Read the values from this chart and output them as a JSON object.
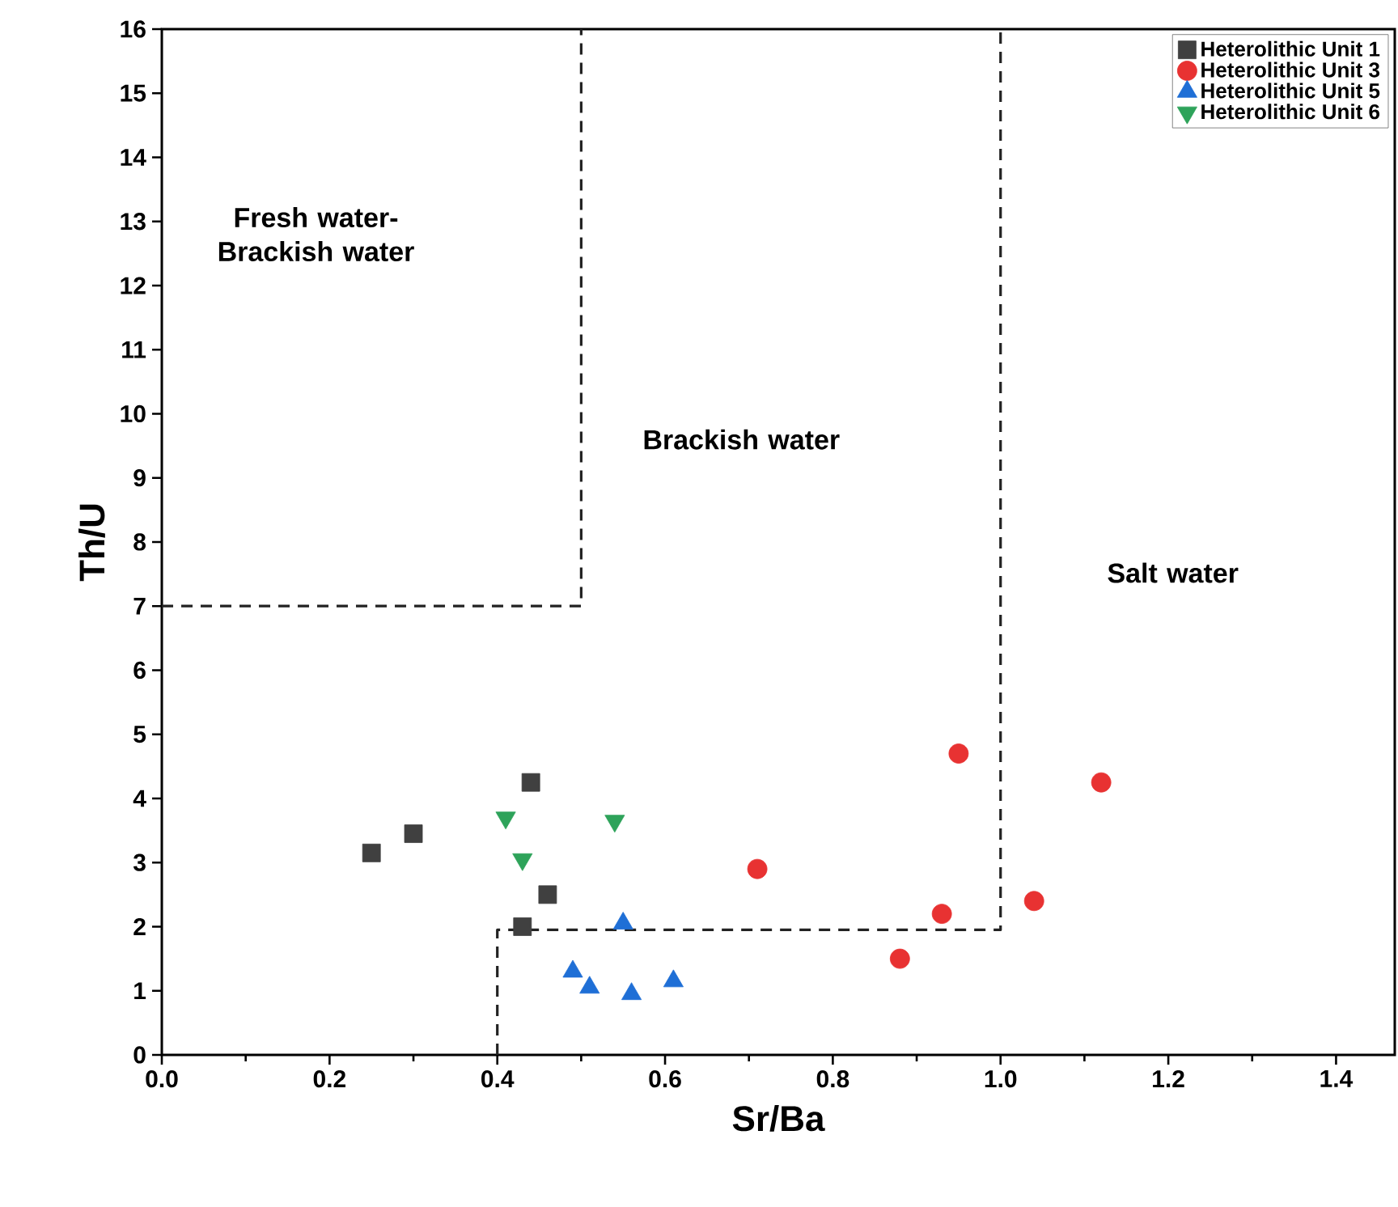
{
  "chart_data": {
    "type": "scatter",
    "xlabel": "Sr/Ba",
    "ylabel": "Th/U",
    "xlim": [
      0,
      1.47
    ],
    "xticks": [
      {
        "value": 0,
        "label": "0.0"
      },
      0.2,
      0.4,
      0.6,
      0.8,
      {
        "value": 1,
        "label": "1.0"
      },
      1.2,
      1.4
    ],
    "ylim": [
      0,
      16
    ],
    "yticks": [
      0,
      1,
      2,
      3,
      4,
      5,
      6,
      7,
      8,
      9,
      10,
      11,
      12,
      13,
      14,
      15,
      16
    ],
    "grid": false,
    "legend": "top right",
    "annotations": [
      "Fresh water-Brackish water",
      "Brackish water",
      "Salt water"
    ],
    "series": [
      {
        "name": "Heterolithic Unit 1",
        "marker": "square",
        "color": "#404040",
        "x": [
          0.25,
          0.3,
          0.44,
          0.46,
          0.43
        ],
        "values": [
          3.15,
          3.45,
          4.25,
          2.5,
          2.0
        ]
      },
      {
        "name": "Heterolithic Unit 3",
        "marker": "circle",
        "color": "#e83232",
        "x": [
          0.71,
          0.95,
          0.93,
          0.88,
          1.04,
          1.12
        ],
        "values": [
          2.9,
          4.7,
          2.2,
          1.5,
          2.4,
          4.25
        ]
      },
      {
        "name": "Heterolithic Unit 5",
        "marker": "triangle",
        "color": "#1f6fd6",
        "x": [
          0.55,
          0.49,
          0.51,
          0.56,
          0.61
        ],
        "values": [
          2.05,
          1.3,
          1.05,
          0.95,
          1.15
        ]
      },
      {
        "name": "Heterolithic Unit 6",
        "marker": "triangle-down",
        "color": "#2ea35a",
        "x": [
          0.41,
          0.43,
          0.54
        ],
        "values": [
          3.7,
          3.05,
          3.65
        ]
      },
      {
        "type": "line",
        "line_style": "dashed",
        "marker": "none",
        "color": "#222222",
        "x": [
          0,
          0.5,
          0.5
        ],
        "values": [
          7,
          7,
          16
        ]
      },
      {
        "type": "line",
        "line_style": "dashed",
        "marker": "none",
        "color": "#222222",
        "x": [
          0.4,
          0.4,
          1.0,
          1.0
        ],
        "values": [
          0,
          1.95,
          1.95,
          16
        ]
      }
    ]
  }
}
